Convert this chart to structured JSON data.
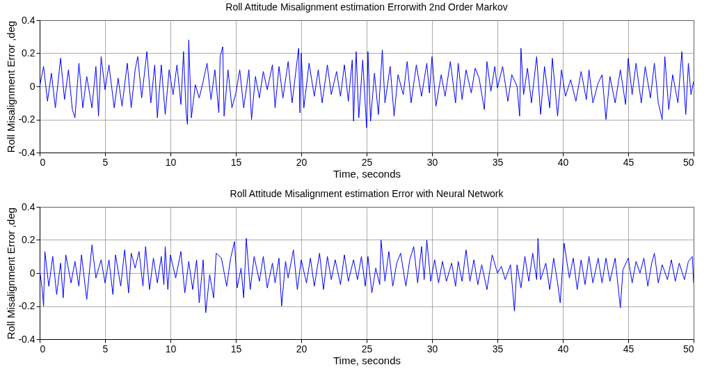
{
  "chart_data": [
    {
      "type": "line",
      "title": "Roll Attitude Misalignment estimation Errorwith 2nd Order Markov",
      "xlabel": "Time, seconds",
      "ylabel": "Roll  Misalignment Error ,deg",
      "xlim": [
        0,
        50
      ],
      "xticks": [
        0,
        5,
        10,
        15,
        20,
        25,
        30,
        35,
        40,
        45,
        50
      ],
      "ylim": [
        -0.4,
        0.4
      ],
      "yticks": [
        -0.4,
        -0.2,
        0,
        0.2,
        0.4
      ],
      "grid": true,
      "series": [
        {
          "color": "#0000ff",
          "x": [
            0,
            0.3,
            0.6,
            0.9,
            1.2,
            1.6,
            1.9,
            2.2,
            2.5,
            2.7,
            3.0,
            3.3,
            3.6,
            4.0,
            4.3,
            4.5,
            4.7,
            5.0,
            5.3,
            5.7,
            6.0,
            6.3,
            6.7,
            7.0,
            7.3,
            7.5,
            7.8,
            8.2,
            8.5,
            8.8,
            9.0,
            9.3,
            9.6,
            9.9,
            10.2,
            10.5,
            10.8,
            11.0,
            11.2,
            11.3,
            11.4,
            11.6,
            11.9,
            12.2,
            12.5,
            12.8,
            13.1,
            13.4,
            13.7,
            13.8,
            14.0,
            14.1,
            14.4,
            14.7,
            15.0,
            15.3,
            15.6,
            16.0,
            16.2,
            16.5,
            16.8,
            17.1,
            17.4,
            17.8,
            18.0,
            18.3,
            18.6,
            19.0,
            19.3,
            19.6,
            19.8,
            19.9,
            20.0,
            20.2,
            20.6,
            21.0,
            21.3,
            21.6,
            22.0,
            22.3,
            22.7,
            23.0,
            23.3,
            23.6,
            23.9,
            24.0,
            24.2,
            24.4,
            24.7,
            25.0,
            25.1,
            25.3,
            25.6,
            25.9,
            26.2,
            26.4,
            26.8,
            27.1,
            27.4,
            27.8,
            28.1,
            28.4,
            28.8,
            29.2,
            29.6,
            29.8,
            30.0,
            30.3,
            30.7,
            31.0,
            31.4,
            31.8,
            32.0,
            32.3,
            32.6,
            33.0,
            33.3,
            33.6,
            34.0,
            34.2,
            34.5,
            34.8,
            35.0,
            35.4,
            35.8,
            36.1,
            36.5,
            36.7,
            36.8,
            37.0,
            37.3,
            37.6,
            38.0,
            38.3,
            38.6,
            39.0,
            39.2,
            39.6,
            39.9,
            40.2,
            40.6,
            41.0,
            41.4,
            41.8,
            42.0,
            42.3,
            42.7,
            43.0,
            43.3,
            43.6,
            44.0,
            44.4,
            44.8,
            45.0,
            45.3,
            45.6,
            46.0,
            46.3,
            46.7,
            47.0,
            47.3,
            47.6,
            47.8,
            48.1,
            48.4,
            48.8,
            49.1,
            49.4,
            49.6,
            49.8,
            50.0
          ],
          "values": [
            0.0,
            0.12,
            -0.09,
            0.08,
            -0.13,
            0.17,
            -0.08,
            0.1,
            -0.14,
            -0.19,
            0.14,
            -0.13,
            0.06,
            -0.13,
            0.12,
            -0.18,
            0.18,
            -0.02,
            0.13,
            -0.13,
            0.05,
            -0.12,
            0.14,
            -0.13,
            0.1,
            0.18,
            -0.07,
            0.21,
            -0.1,
            0.13,
            -0.19,
            0.13,
            -0.17,
            0.1,
            -0.05,
            0.13,
            -0.11,
            0.21,
            -0.16,
            -0.23,
            0.28,
            -0.19,
            0.01,
            -0.07,
            0.03,
            0.14,
            -0.08,
            0.1,
            -0.16,
            0.18,
            0.24,
            -0.18,
            0.1,
            -0.13,
            -0.04,
            0.1,
            -0.13,
            0.1,
            -0.2,
            0.06,
            -0.07,
            0.09,
            -0.02,
            0.13,
            -0.13,
            0.12,
            -0.07,
            0.15,
            -0.1,
            0.1,
            0.23,
            -0.16,
            0.2,
            -0.13,
            0.14,
            -0.06,
            0.1,
            -0.1,
            0.13,
            -0.05,
            0.09,
            -0.06,
            0.13,
            -0.09,
            0.16,
            -0.21,
            0.21,
            -0.19,
            0.16,
            -0.25,
            0.21,
            -0.21,
            0.08,
            -0.17,
            0.22,
            -0.1,
            0.12,
            -0.18,
            0.07,
            -0.05,
            0.15,
            -0.1,
            0.13,
            -0.06,
            0.14,
            -0.04,
            0.18,
            -0.12,
            0.07,
            -0.06,
            0.15,
            -0.1,
            0.14,
            -0.08,
            0.1,
            -0.04,
            0.11,
            0.05,
            -0.14,
            0.15,
            -0.03,
            0.12,
            -0.01,
            0.12,
            -0.09,
            0.07,
            0.0,
            -0.18,
            0.23,
            -0.05,
            0.11,
            -0.1,
            0.18,
            -0.17,
            0.12,
            -0.13,
            0.17,
            -0.18,
            0.1,
            -0.06,
            0.04,
            -0.09,
            0.09,
            -0.08,
            0.1,
            -0.1,
            0.02,
            0.07,
            -0.2,
            0.06,
            -0.1,
            0.1,
            -0.11,
            0.17,
            -0.05,
            0.14,
            -0.1,
            0.12,
            -0.07,
            0.14,
            -0.1,
            -0.2,
            0.18,
            -0.14,
            0.07,
            -0.1,
            0.21,
            -0.17,
            0.14,
            -0.05,
            0.03
          ]
        }
      ]
    },
    {
      "type": "line",
      "title": "Roll Attitude Misalignment estimation Error with Neural Network",
      "xlabel": "Time, seconds",
      "ylabel": "Roll  Misalignment Error ,deg",
      "xlim": [
        0,
        50
      ],
      "xticks": [
        0,
        5,
        10,
        15,
        20,
        25,
        30,
        35,
        40,
        45,
        50
      ],
      "ylim": [
        -0.4,
        0.4
      ],
      "yticks": [
        -0.4,
        -0.2,
        0,
        0.2,
        0.4
      ],
      "grid": true,
      "series": [
        {
          "color": "#0000ff",
          "x": [
            0,
            0.2,
            0.3,
            0.4,
            0.7,
            1.0,
            1.3,
            1.6,
            1.8,
            2.0,
            2.4,
            2.7,
            3.0,
            3.2,
            3.6,
            4.0,
            4.3,
            4.7,
            5.0,
            5.3,
            5.6,
            5.8,
            6.2,
            6.5,
            6.8,
            7.0,
            7.3,
            7.6,
            7.9,
            8.1,
            8.4,
            8.7,
            9.0,
            9.3,
            9.5,
            9.6,
            9.8,
            10.0,
            10.4,
            10.8,
            11.1,
            11.4,
            11.7,
            12.0,
            12.2,
            12.5,
            12.7,
            13.0,
            13.3,
            13.5,
            13.9,
            14.3,
            14.6,
            14.9,
            15.1,
            15.4,
            15.6,
            15.8,
            16.1,
            16.4,
            16.8,
            17.1,
            17.4,
            17.8,
            18.0,
            18.3,
            18.5,
            18.8,
            19.0,
            19.4,
            19.7,
            20.0,
            20.4,
            20.7,
            21.0,
            21.4,
            21.7,
            22.0,
            22.3,
            22.6,
            23.0,
            23.3,
            23.6,
            24.0,
            24.3,
            24.6,
            24.9,
            25.1,
            25.4,
            25.7,
            26.0,
            26.1,
            26.4,
            26.7,
            27.0,
            27.3,
            27.6,
            28.0,
            28.3,
            28.6,
            28.9,
            29.2,
            29.4,
            29.6,
            29.9,
            30.2,
            30.5,
            30.8,
            31.1,
            31.5,
            31.8,
            32.0,
            32.3,
            32.6,
            32.9,
            33.2,
            33.5,
            33.8,
            34.2,
            34.6,
            35.0,
            35.3,
            35.6,
            36.0,
            36.3,
            36.5,
            36.8,
            37.1,
            37.4,
            37.7,
            38.0,
            38.1,
            38.3,
            38.7,
            39.0,
            39.3,
            39.6,
            39.8,
            40.1,
            40.5,
            40.8,
            41.1,
            41.4,
            41.7,
            42.0,
            42.3,
            42.7,
            43.0,
            43.3,
            43.6,
            44.0,
            44.4,
            44.6,
            45.0,
            45.3,
            45.6,
            45.9,
            46.2,
            46.5,
            46.8,
            47.0,
            47.3,
            47.6,
            48.0,
            48.3,
            48.6,
            48.9,
            49.3,
            49.6,
            49.9,
            50.0
          ],
          "values": [
            0.02,
            -0.1,
            -0.2,
            0.13,
            -0.08,
            0.1,
            -0.13,
            0.06,
            -0.15,
            0.11,
            -0.06,
            0.07,
            -0.08,
            0.11,
            -0.16,
            0.17,
            -0.03,
            0.08,
            -0.06,
            0.08,
            -0.13,
            0.11,
            -0.08,
            0.14,
            -0.12,
            0.12,
            0.03,
            0.13,
            -0.08,
            0.16,
            -0.1,
            0.09,
            -0.06,
            0.1,
            -0.07,
            0.16,
            -0.1,
            0.11,
            -0.03,
            0.13,
            -0.12,
            0.07,
            -0.1,
            0.08,
            -0.18,
            0.08,
            -0.24,
            -0.01,
            -0.15,
            0.12,
            0.09,
            -0.08,
            0.09,
            0.19,
            -0.09,
            0.03,
            -0.15,
            0.21,
            -0.1,
            0.1,
            -0.05,
            0.1,
            -0.09,
            0.06,
            -0.06,
            0.09,
            -0.2,
            0.07,
            -0.03,
            0.14,
            -0.1,
            0.08,
            -0.06,
            0.09,
            -0.08,
            0.12,
            -0.1,
            0.1,
            -0.04,
            0.08,
            -0.07,
            0.11,
            -0.05,
            0.08,
            -0.04,
            0.1,
            -0.08,
            0.1,
            -0.12,
            0.03,
            -0.07,
            0.2,
            -0.05,
            0.13,
            -0.08,
            0.06,
            0.12,
            -0.08,
            0.08,
            0.16,
            -0.06,
            0.16,
            -0.04,
            0.2,
            -0.05,
            0.08,
            -0.06,
            0.07,
            -0.05,
            0.06,
            -0.08,
            0.07,
            -0.05,
            0.14,
            -0.05,
            0.08,
            -0.07,
            0.05,
            -0.1,
            0.11,
            0.0,
            0.04,
            -0.04,
            0.05,
            -0.23,
            0.05,
            -0.09,
            0.1,
            -0.05,
            0.12,
            -0.04,
            0.21,
            -0.04,
            0.06,
            -0.1,
            0.09,
            -0.06,
            -0.18,
            0.18,
            -0.03,
            0.09,
            -0.1,
            0.08,
            -0.07,
            0.1,
            -0.06,
            0.09,
            -0.06,
            0.09,
            -0.05,
            0.09,
            -0.21,
            0.02,
            0.09,
            -0.06,
            0.07,
            0.0,
            0.09,
            -0.08,
            0.06,
            0.12,
            -0.06,
            0.05,
            -0.04,
            0.08,
            -0.05,
            0.06,
            -0.04,
            0.07,
            0.1,
            -0.06
          ]
        }
      ]
    }
  ]
}
